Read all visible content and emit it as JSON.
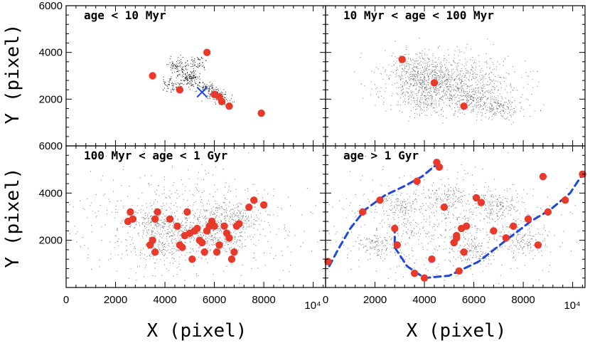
{
  "chart_data": {
    "type": "scatter",
    "xlabel": "X (pixel)",
    "ylabel": "Y (pixel)",
    "xlim": [
      0,
      10500
    ],
    "ylim": [
      0,
      6000
    ],
    "xticks": [
      0,
      2000,
      4000,
      6000,
      8000
    ],
    "xtick_labels": [
      "0",
      "2000",
      "4000",
      "6000",
      "8000"
    ],
    "x_multiplier_label": "10⁴",
    "yticks": [
      2000,
      4000,
      6000
    ],
    "ytick_labels": [
      "2000",
      "4000",
      "6000"
    ],
    "colors": {
      "marker": "#e8392a",
      "dashed": "#1f47d8",
      "center": "#1f47d8",
      "stars": "#000000"
    },
    "panels": [
      {
        "label": "age < 10 Myr",
        "red_points": [
          [
            3500,
            3000
          ],
          [
            4600,
            2400
          ],
          [
            5700,
            4000
          ],
          [
            6000,
            2200
          ],
          [
            6200,
            2100
          ],
          [
            6300,
            1900
          ],
          [
            6600,
            1700
          ],
          [
            7900,
            1400
          ]
        ],
        "center": [
          5500,
          2300
        ],
        "dashed_curves": [],
        "star_density": "sparse",
        "star_clumps": [
          [
            4700,
            3200
          ],
          [
            5000,
            3000
          ],
          [
            5300,
            3600
          ],
          [
            4500,
            3500
          ],
          [
            6000,
            2200
          ],
          [
            6300,
            2000
          ],
          [
            4200,
            2600
          ],
          [
            5700,
            2500
          ],
          [
            5000,
            2800
          ]
        ]
      },
      {
        "label": "10 Myr < age < 100 Myr",
        "red_points": [
          [
            3100,
            3700
          ],
          [
            4400,
            2700
          ],
          [
            5600,
            1700
          ]
        ],
        "center": null,
        "dashed_curves": [],
        "star_density": "medium",
        "star_clumps": [
          [
            3500,
            3500
          ],
          [
            4500,
            3000
          ],
          [
            5000,
            2500
          ],
          [
            5800,
            2000
          ],
          [
            6500,
            1800
          ],
          [
            7200,
            1600
          ],
          [
            4000,
            2000
          ],
          [
            3600,
            2800
          ]
        ]
      },
      {
        "label": "100 Myr < age < 1 Gyr",
        "red_points": [
          [
            2500,
            2800
          ],
          [
            2600,
            3200
          ],
          [
            2700,
            2900
          ],
          [
            3400,
            1800
          ],
          [
            3500,
            2000
          ],
          [
            3600,
            1500
          ],
          [
            3600,
            2900
          ],
          [
            3700,
            3200
          ],
          [
            4200,
            2900
          ],
          [
            4500,
            2600
          ],
          [
            4600,
            1800
          ],
          [
            4700,
            1700
          ],
          [
            4800,
            2200
          ],
          [
            4900,
            3200
          ],
          [
            5000,
            2300
          ],
          [
            5100,
            1200
          ],
          [
            5200,
            2400
          ],
          [
            5300,
            2500
          ],
          [
            5400,
            2000
          ],
          [
            5500,
            1900
          ],
          [
            5600,
            1500
          ],
          [
            5700,
            2400
          ],
          [
            5800,
            2600
          ],
          [
            5900,
            2800
          ],
          [
            6000,
            2600
          ],
          [
            6100,
            1500
          ],
          [
            6200,
            1800
          ],
          [
            6400,
            2600
          ],
          [
            6500,
            2300
          ],
          [
            6600,
            2100
          ],
          [
            6700,
            1200
          ],
          [
            6800,
            1500
          ],
          [
            6900,
            2600
          ],
          [
            7000,
            2700
          ],
          [
            7400,
            3400
          ],
          [
            7600,
            3700
          ],
          [
            8000,
            3500
          ]
        ],
        "center": null,
        "dashed_curves": [],
        "star_density": "dense",
        "star_clumps": [
          [
            4500,
            2500
          ],
          [
            5500,
            2200
          ],
          [
            6500,
            2000
          ],
          [
            3500,
            2800
          ],
          [
            4000,
            1700
          ],
          [
            6000,
            3000
          ],
          [
            7000,
            3000
          ]
        ]
      },
      {
        "label": "age > 1 Gyr",
        "red_points": [
          [
            100,
            1100
          ],
          [
            1500,
            3200
          ],
          [
            2200,
            3700
          ],
          [
            2800,
            2500
          ],
          [
            2900,
            1800
          ],
          [
            3600,
            600
          ],
          [
            3700,
            4500
          ],
          [
            4000,
            400
          ],
          [
            4300,
            1200
          ],
          [
            4500,
            5300
          ],
          [
            4600,
            5100
          ],
          [
            4800,
            3400
          ],
          [
            5200,
            1900
          ],
          [
            5300,
            2100
          ],
          [
            5300,
            2200
          ],
          [
            5400,
            700
          ],
          [
            5500,
            2500
          ],
          [
            5600,
            1500
          ],
          [
            5700,
            2600
          ],
          [
            6100,
            3800
          ],
          [
            6300,
            3600
          ],
          [
            6800,
            2400
          ],
          [
            7300,
            2100
          ],
          [
            7600,
            2600
          ],
          [
            8200,
            2900
          ],
          [
            8600,
            1800
          ],
          [
            8800,
            4700
          ],
          [
            9000,
            3200
          ],
          [
            9700,
            3700
          ],
          [
            10400,
            4800
          ]
        ],
        "center": null,
        "dashed_curves": [
          [
            [
              150,
              900
            ],
            [
              500,
              1600
            ],
            [
              1000,
              2500
            ],
            [
              1600,
              3300
            ],
            [
              2400,
              3900
            ],
            [
              3200,
              4300
            ],
            [
              3900,
              4700
            ],
            [
              4600,
              5300
            ]
          ],
          [
            [
              2800,
              2600
            ],
            [
              2800,
              1700
            ],
            [
              3300,
              900
            ],
            [
              4000,
              400
            ],
            [
              5000,
              500
            ],
            [
              6200,
              1100
            ],
            [
              7300,
              2000
            ],
            [
              8300,
              2800
            ],
            [
              9100,
              3300
            ],
            [
              9900,
              4000
            ],
            [
              10400,
              4800
            ]
          ]
        ],
        "star_density": "dense",
        "star_clumps": [
          [
            3000,
            3500
          ],
          [
            5000,
            3800
          ],
          [
            7000,
            3500
          ],
          [
            8000,
            2000
          ],
          [
            2000,
            1800
          ],
          [
            6000,
            1500
          ]
        ]
      }
    ]
  }
}
